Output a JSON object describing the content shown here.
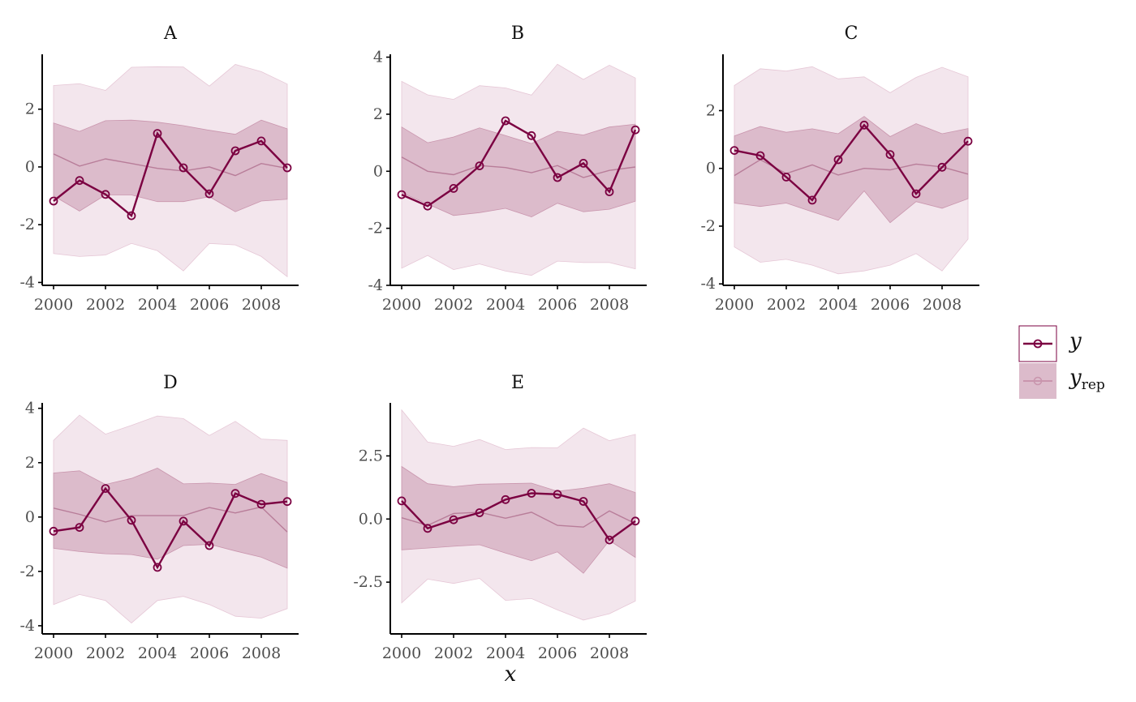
{
  "colors": {
    "y_line": "#7b0041",
    "outer_band": "#f3e6ed",
    "outer_band_edge": "#e6c7d6",
    "inner_band": "#dcbbcb",
    "inner_band_edge": "#c995ad",
    "median": "#b87d99"
  },
  "chart_data": {
    "type": "line",
    "xlabel": "x",
    "x": [
      2000,
      2001,
      2002,
      2003,
      2004,
      2005,
      2006,
      2007,
      2008,
      2009
    ],
    "legend": {
      "position": "right",
      "y_label": "y",
      "yrep_label": "y",
      "yrep_subscript": "rep"
    },
    "panels": [
      {
        "title": "A",
        "ylim": [
          -4.1,
          3.9
        ],
        "yticks": [
          {
            "v": 2,
            "label": "2"
          },
          {
            "v": 0,
            "label": "0"
          },
          {
            "v": -2,
            "label": "-2"
          },
          {
            "v": -4,
            "label": "-4"
          }
        ],
        "xticks": [
          "2000",
          "2002",
          "2004",
          "2006",
          "2008"
        ],
        "y": [
          -1.18,
          -0.47,
          -0.95,
          -1.69,
          1.16,
          -0.03,
          -0.93,
          0.56,
          0.9,
          -0.03
        ],
        "median": [
          0.45,
          0.03,
          0.28,
          0.12,
          -0.05,
          -0.14,
          0.0,
          -0.3,
          0.12,
          -0.05
        ],
        "inner_low": [
          -1.0,
          -1.53,
          -0.97,
          -0.97,
          -1.2,
          -1.2,
          -1.03,
          -1.55,
          -1.18,
          -1.12
        ],
        "inner_high": [
          1.52,
          1.23,
          1.6,
          1.62,
          1.55,
          1.43,
          1.27,
          1.13,
          1.62,
          1.32
        ],
        "outer_low": [
          -3.0,
          -3.1,
          -3.05,
          -2.65,
          -2.9,
          -3.6,
          -2.65,
          -2.7,
          -3.1,
          -3.8
        ],
        "outer_high": [
          2.82,
          2.88,
          2.65,
          3.45,
          3.47,
          3.46,
          2.8,
          3.55,
          3.3,
          2.87
        ]
      },
      {
        "title": "B",
        "ylim": [
          -4.0,
          4.1
        ],
        "yticks": [
          {
            "v": 4,
            "label": "4"
          },
          {
            "v": 2,
            "label": "2"
          },
          {
            "v": 0,
            "label": "0"
          },
          {
            "v": -2,
            "label": "-2"
          },
          {
            "v": -4,
            "label": "-4"
          }
        ],
        "xticks": [
          "2000",
          "2002",
          "2004",
          "2006",
          "2008"
        ],
        "y": [
          -0.82,
          -1.22,
          -0.6,
          0.19,
          1.77,
          1.25,
          -0.22,
          0.28,
          -0.72,
          1.45
        ],
        "median": [
          0.5,
          0.0,
          -0.12,
          0.2,
          0.13,
          -0.05,
          0.2,
          -0.22,
          0.03,
          0.15
        ],
        "inner_low": [
          -0.75,
          -1.15,
          -1.55,
          -1.45,
          -1.3,
          -1.6,
          -1.12,
          -1.42,
          -1.33,
          -1.05
        ],
        "inner_high": [
          1.55,
          1.0,
          1.2,
          1.52,
          1.25,
          0.97,
          1.4,
          1.27,
          1.55,
          1.65
        ],
        "outer_low": [
          -3.4,
          -2.95,
          -3.45,
          -3.25,
          -3.5,
          -3.65,
          -3.15,
          -3.2,
          -3.2,
          -3.42
        ],
        "outer_high": [
          3.15,
          2.68,
          2.52,
          3.0,
          2.92,
          2.67,
          3.75,
          3.22,
          3.72,
          3.27
        ]
      },
      {
        "title": "C",
        "ylim": [
          -4.05,
          3.95
        ],
        "yticks": [
          {
            "v": 2,
            "label": "2"
          },
          {
            "v": 0,
            "label": "0"
          },
          {
            "v": -2,
            "label": "-2"
          },
          {
            "v": -4,
            "label": "-4"
          }
        ],
        "xticks": [
          "2000",
          "2002",
          "2004",
          "2006",
          "2008"
        ],
        "y": [
          0.62,
          0.44,
          -0.3,
          -1.1,
          0.3,
          1.5,
          0.48,
          -0.88,
          0.04,
          0.94
        ],
        "median": [
          -0.25,
          0.3,
          -0.18,
          0.12,
          -0.23,
          0.0,
          -0.05,
          0.15,
          0.05,
          -0.2
        ],
        "inner_low": [
          -1.2,
          -1.32,
          -1.2,
          -1.5,
          -1.8,
          -0.78,
          -1.88,
          -1.15,
          -1.38,
          -1.05
        ],
        "inner_high": [
          1.12,
          1.45,
          1.25,
          1.37,
          1.2,
          1.8,
          1.1,
          1.55,
          1.2,
          1.38
        ],
        "outer_low": [
          -2.72,
          -3.25,
          -3.15,
          -3.35,
          -3.65,
          -3.55,
          -3.35,
          -2.95,
          -3.55,
          -2.45
        ],
        "outer_high": [
          2.87,
          3.45,
          3.37,
          3.52,
          3.1,
          3.17,
          2.62,
          3.15,
          3.5,
          3.17
        ]
      },
      {
        "title": "D",
        "ylim": [
          -4.3,
          4.2
        ],
        "yticks": [
          {
            "v": 4,
            "label": "4"
          },
          {
            "v": 2,
            "label": "2"
          },
          {
            "v": 0,
            "label": "0"
          },
          {
            "v": -2,
            "label": "-2"
          },
          {
            "v": -4,
            "label": "-4"
          }
        ],
        "xticks": [
          "2000",
          "2002",
          "2004",
          "2006",
          "2008"
        ],
        "y": [
          -0.52,
          -0.38,
          1.05,
          -0.12,
          -1.85,
          -0.15,
          -1.05,
          0.87,
          0.47,
          0.57
        ],
        "median": [
          0.33,
          0.1,
          -0.18,
          0.05,
          0.05,
          0.05,
          0.35,
          0.15,
          0.37,
          -0.55
        ],
        "inner_low": [
          -1.15,
          -1.27,
          -1.35,
          -1.38,
          -1.55,
          -1.05,
          -1.0,
          -1.25,
          -1.48,
          -1.88
        ],
        "inner_high": [
          1.62,
          1.7,
          1.2,
          1.42,
          1.8,
          1.22,
          1.25,
          1.2,
          1.6,
          1.27
        ],
        "outer_low": [
          -3.22,
          -2.85,
          -3.07,
          -3.9,
          -3.07,
          -2.92,
          -3.22,
          -3.65,
          -3.72,
          -3.37
        ],
        "outer_high": [
          2.82,
          3.75,
          3.05,
          3.37,
          3.72,
          3.62,
          3.0,
          3.52,
          2.87,
          2.82
        ]
      },
      {
        "title": "E",
        "ylim": [
          -4.55,
          4.6
        ],
        "yticks": [
          {
            "v": 2.5,
            "label": "2.5"
          },
          {
            "v": 0.0,
            "label": "0.0"
          },
          {
            "v": -2.5,
            "label": "-2.5"
          }
        ],
        "xticks": [
          "2000",
          "2002",
          "2004",
          "2006",
          "2008"
        ],
        "y": [
          0.72,
          -0.37,
          -0.03,
          0.25,
          0.77,
          1.02,
          0.98,
          0.7,
          -0.83,
          -0.08
        ],
        "median": [
          0.05,
          -0.25,
          0.22,
          0.27,
          0.03,
          0.27,
          -0.25,
          -0.32,
          0.32,
          -0.18
        ],
        "inner_low": [
          -1.22,
          -1.15,
          -1.08,
          -1.02,
          -1.35,
          -1.65,
          -1.3,
          -2.15,
          -0.85,
          -1.52
        ],
        "inner_high": [
          2.08,
          1.4,
          1.28,
          1.38,
          1.4,
          1.42,
          1.1,
          1.22,
          1.4,
          1.05
        ],
        "outer_low": [
          -3.32,
          -2.38,
          -2.55,
          -2.35,
          -3.22,
          -3.15,
          -3.6,
          -4.0,
          -3.75,
          -3.25
        ],
        "outer_high": [
          4.32,
          3.05,
          2.88,
          3.15,
          2.75,
          2.83,
          2.82,
          3.6,
          3.1,
          3.35
        ]
      }
    ]
  }
}
